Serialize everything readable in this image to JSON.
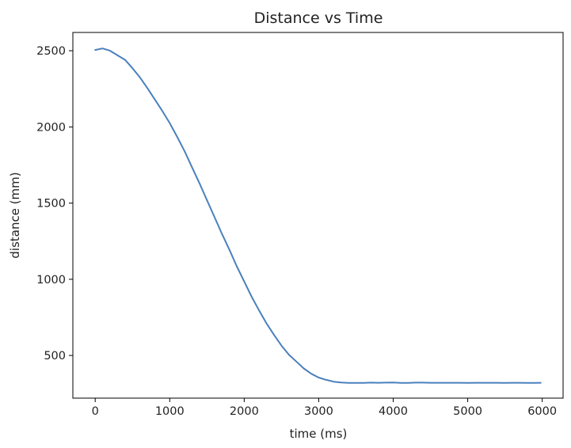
{
  "chart_data": {
    "type": "line",
    "title": "Distance vs Time",
    "xlabel": "time (ms)",
    "ylabel": "distance (mm)",
    "xlim": [
      -300,
      6280
    ],
    "ylim": [
      220,
      2620
    ],
    "xticks": [
      0,
      1000,
      2000,
      3000,
      4000,
      5000,
      6000
    ],
    "yticks": [
      500,
      1000,
      1500,
      2000,
      2500
    ],
    "grid": false,
    "series": [
      {
        "color": "#4a80bd",
        "x": [
          0,
          100,
          200,
          300,
          400,
          500,
          600,
          700,
          800,
          900,
          1000,
          1100,
          1200,
          1300,
          1400,
          1500,
          1600,
          1700,
          1800,
          1900,
          2000,
          2100,
          2200,
          2300,
          2400,
          2500,
          2600,
          2700,
          2800,
          2900,
          3000,
          3100,
          3200,
          3300,
          3400,
          3500,
          3600,
          3700,
          3800,
          3900,
          4000,
          4100,
          4200,
          4300,
          4400,
          4500,
          4600,
          4700,
          4800,
          4900,
          5000,
          5100,
          5200,
          5300,
          5400,
          5500,
          5600,
          5700,
          5800,
          5900,
          5980
        ],
        "y": [
          2505,
          2515,
          2500,
          2470,
          2440,
          2385,
          2325,
          2255,
          2180,
          2105,
          2025,
          1935,
          1840,
          1735,
          1630,
          1520,
          1410,
          1300,
          1195,
          1085,
          985,
          885,
          795,
          710,
          635,
          565,
          505,
          460,
          415,
          380,
          355,
          340,
          328,
          323,
          320,
          320,
          320,
          322,
          321,
          322,
          323,
          320,
          320,
          322,
          322,
          321,
          321,
          321,
          321,
          321,
          320,
          321,
          321,
          321,
          321,
          320,
          321,
          321,
          320,
          320,
          321
        ]
      }
    ]
  }
}
